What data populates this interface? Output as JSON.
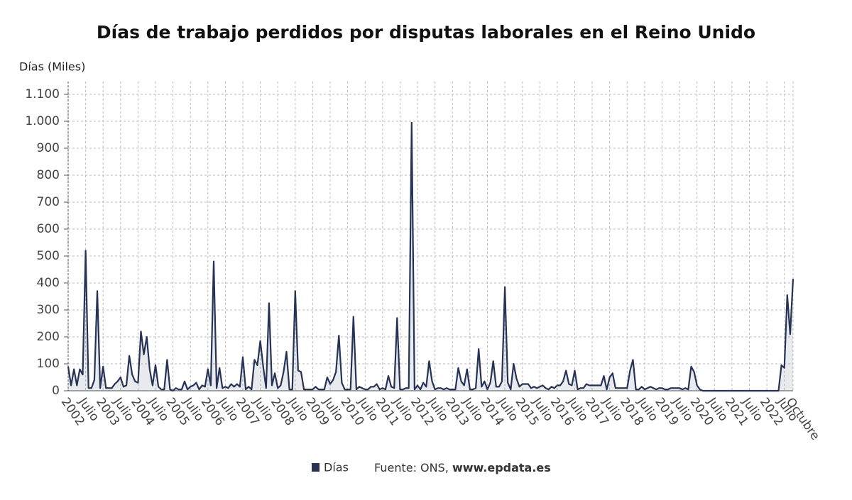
{
  "chart_data": {
    "type": "line",
    "title": "Días de trabajo perdidos por disputas laborales en el Reino Unido",
    "y_axis_label": "Días (Miles)",
    "source": "Fuente: ONS, ",
    "source_link": "www.epdata.es",
    "grid": true,
    "ylim": [
      0,
      1100
    ],
    "yticks": [
      0,
      100,
      200,
      300,
      400,
      500,
      600,
      700,
      800,
      900,
      {
        "value": 1000,
        "label": "1.000"
      },
      {
        "value": 1100,
        "label": "1.100"
      }
    ],
    "categories": [
      "2002",
      null,
      null,
      null,
      null,
      null,
      "Julio",
      null,
      null,
      null,
      null,
      null,
      "2003",
      null,
      null,
      null,
      null,
      null,
      "Julio",
      null,
      null,
      null,
      null,
      null,
      "2004",
      null,
      null,
      null,
      null,
      null,
      "Julio",
      null,
      null,
      null,
      null,
      null,
      "2005",
      null,
      null,
      null,
      null,
      null,
      "Julio",
      null,
      null,
      null,
      null,
      null,
      "2006",
      null,
      null,
      null,
      null,
      null,
      "Julio",
      null,
      null,
      null,
      null,
      null,
      "2007",
      null,
      null,
      null,
      null,
      null,
      "Julio",
      null,
      null,
      null,
      null,
      null,
      "2008",
      null,
      null,
      null,
      null,
      null,
      "Julio",
      null,
      null,
      null,
      null,
      null,
      "2009",
      null,
      null,
      null,
      null,
      null,
      "Julio",
      null,
      null,
      null,
      null,
      null,
      "2010",
      null,
      null,
      null,
      null,
      null,
      "Julio",
      null,
      null,
      null,
      null,
      null,
      "2011",
      null,
      null,
      null,
      null,
      null,
      "Julio",
      null,
      null,
      null,
      null,
      null,
      "2012",
      null,
      null,
      null,
      null,
      null,
      "Julio",
      null,
      null,
      null,
      null,
      null,
      "2013",
      null,
      null,
      null,
      null,
      null,
      "Julio",
      null,
      null,
      null,
      null,
      null,
      "2014",
      null,
      null,
      null,
      null,
      null,
      "Julio",
      null,
      null,
      null,
      null,
      null,
      "2015",
      null,
      null,
      null,
      null,
      null,
      "Julio",
      null,
      null,
      null,
      null,
      null,
      "2016",
      null,
      null,
      null,
      null,
      null,
      "Julio",
      null,
      null,
      null,
      null,
      null,
      "2017",
      null,
      null,
      null,
      null,
      null,
      "Julio",
      null,
      null,
      null,
      null,
      null,
      "2018",
      null,
      null,
      null,
      null,
      null,
      "Julio",
      null,
      null,
      null,
      null,
      null,
      "2019",
      null,
      null,
      null,
      null,
      null,
      "Julio",
      null,
      null,
      null,
      null,
      null,
      "2020",
      null,
      null,
      null,
      null,
      null,
      "Julio",
      null,
      null,
      null,
      null,
      null,
      "2021",
      null,
      null,
      null,
      null,
      null,
      "Julio",
      null,
      null,
      null,
      null,
      null,
      "2022",
      null,
      null,
      null,
      null,
      null,
      "Julio",
      null,
      null,
      "Octubre"
    ],
    "series": [
      {
        "name": "Días",
        "color": "#253356",
        "values": [
          90,
          20,
          80,
          20,
          80,
          60,
          520,
          10,
          10,
          40,
          370,
          10,
          90,
          10,
          10,
          10,
          25,
          35,
          50,
          15,
          20,
          130,
          60,
          35,
          30,
          220,
          135,
          200,
          80,
          20,
          95,
          15,
          5,
          5,
          115,
          5,
          0,
          10,
          5,
          5,
          35,
          5,
          15,
          20,
          30,
          5,
          20,
          15,
          80,
          20,
          480,
          10,
          85,
          10,
          15,
          10,
          25,
          15,
          25,
          15,
          125,
          5,
          15,
          5,
          115,
          95,
          185,
          90,
          10,
          325,
          20,
          65,
          10,
          20,
          70,
          145,
          5,
          5,
          370,
          75,
          70,
          5,
          5,
          5,
          5,
          15,
          5,
          5,
          5,
          50,
          25,
          40,
          70,
          205,
          30,
          5,
          5,
          5,
          275,
          5,
          15,
          10,
          5,
          5,
          15,
          15,
          25,
          5,
          10,
          5,
          55,
          15,
          10,
          270,
          5,
          5,
          10,
          10,
          995,
          5,
          20,
          5,
          30,
          15,
          110,
          35,
          5,
          10,
          10,
          5,
          10,
          5,
          5,
          5,
          85,
          35,
          20,
          80,
          5,
          5,
          10,
          155,
          15,
          35,
          5,
          30,
          110,
          15,
          15,
          35,
          385,
          30,
          5,
          100,
          45,
          15,
          25,
          25,
          25,
          10,
          15,
          10,
          15,
          20,
          10,
          5,
          15,
          10,
          20,
          20,
          35,
          75,
          25,
          20,
          75,
          5,
          10,
          10,
          25,
          20,
          20,
          20,
          20,
          20,
          55,
          5,
          50,
          65,
          10,
          10,
          10,
          10,
          10,
          75,
          115,
          5,
          5,
          15,
          5,
          10,
          15,
          10,
          5,
          10,
          10,
          5,
          5,
          10,
          10,
          10,
          10,
          5,
          10,
          5,
          90,
          70,
          20,
          5,
          0,
          0,
          0,
          0,
          0,
          0,
          0,
          0,
          0,
          0,
          0,
          0,
          0,
          0,
          0,
          0,
          0,
          0,
          0,
          0,
          0,
          0,
          0,
          0,
          0,
          0,
          0,
          95,
          85,
          355,
          210,
          415
        ]
      }
    ]
  }
}
